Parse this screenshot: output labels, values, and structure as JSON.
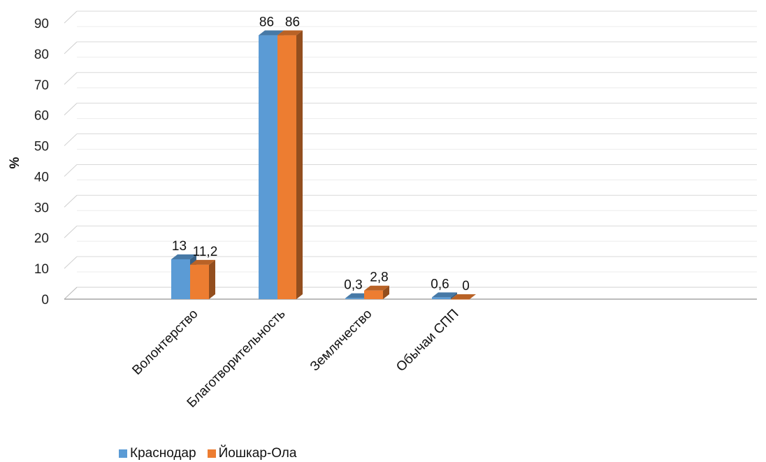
{
  "chart_data": {
    "type": "bar",
    "title": "",
    "xlabel": "",
    "ylabel": "%",
    "ylim": [
      0,
      90
    ],
    "yticks": [
      "0",
      "10",
      "20",
      "30",
      "40",
      "50",
      "60",
      "70",
      "80",
      "90"
    ],
    "grid": true,
    "legend_position": "bottom",
    "categories": [
      "Волонтерство",
      "Благотворительность",
      "Землячество",
      "Обычаи СПП"
    ],
    "series": [
      {
        "name": "Краснодар",
        "values": [
          13,
          86,
          0.3,
          0.6
        ],
        "labels": [
          "13",
          "86",
          "0,3",
          "0,6"
        ],
        "color": "#5b9bd5"
      },
      {
        "name": "Йошкар-Ола",
        "values": [
          11.2,
          86,
          2.8,
          0
        ],
        "labels": [
          "11,2",
          "86",
          "2,8",
          "0"
        ],
        "color": "#ed7d31"
      }
    ]
  }
}
